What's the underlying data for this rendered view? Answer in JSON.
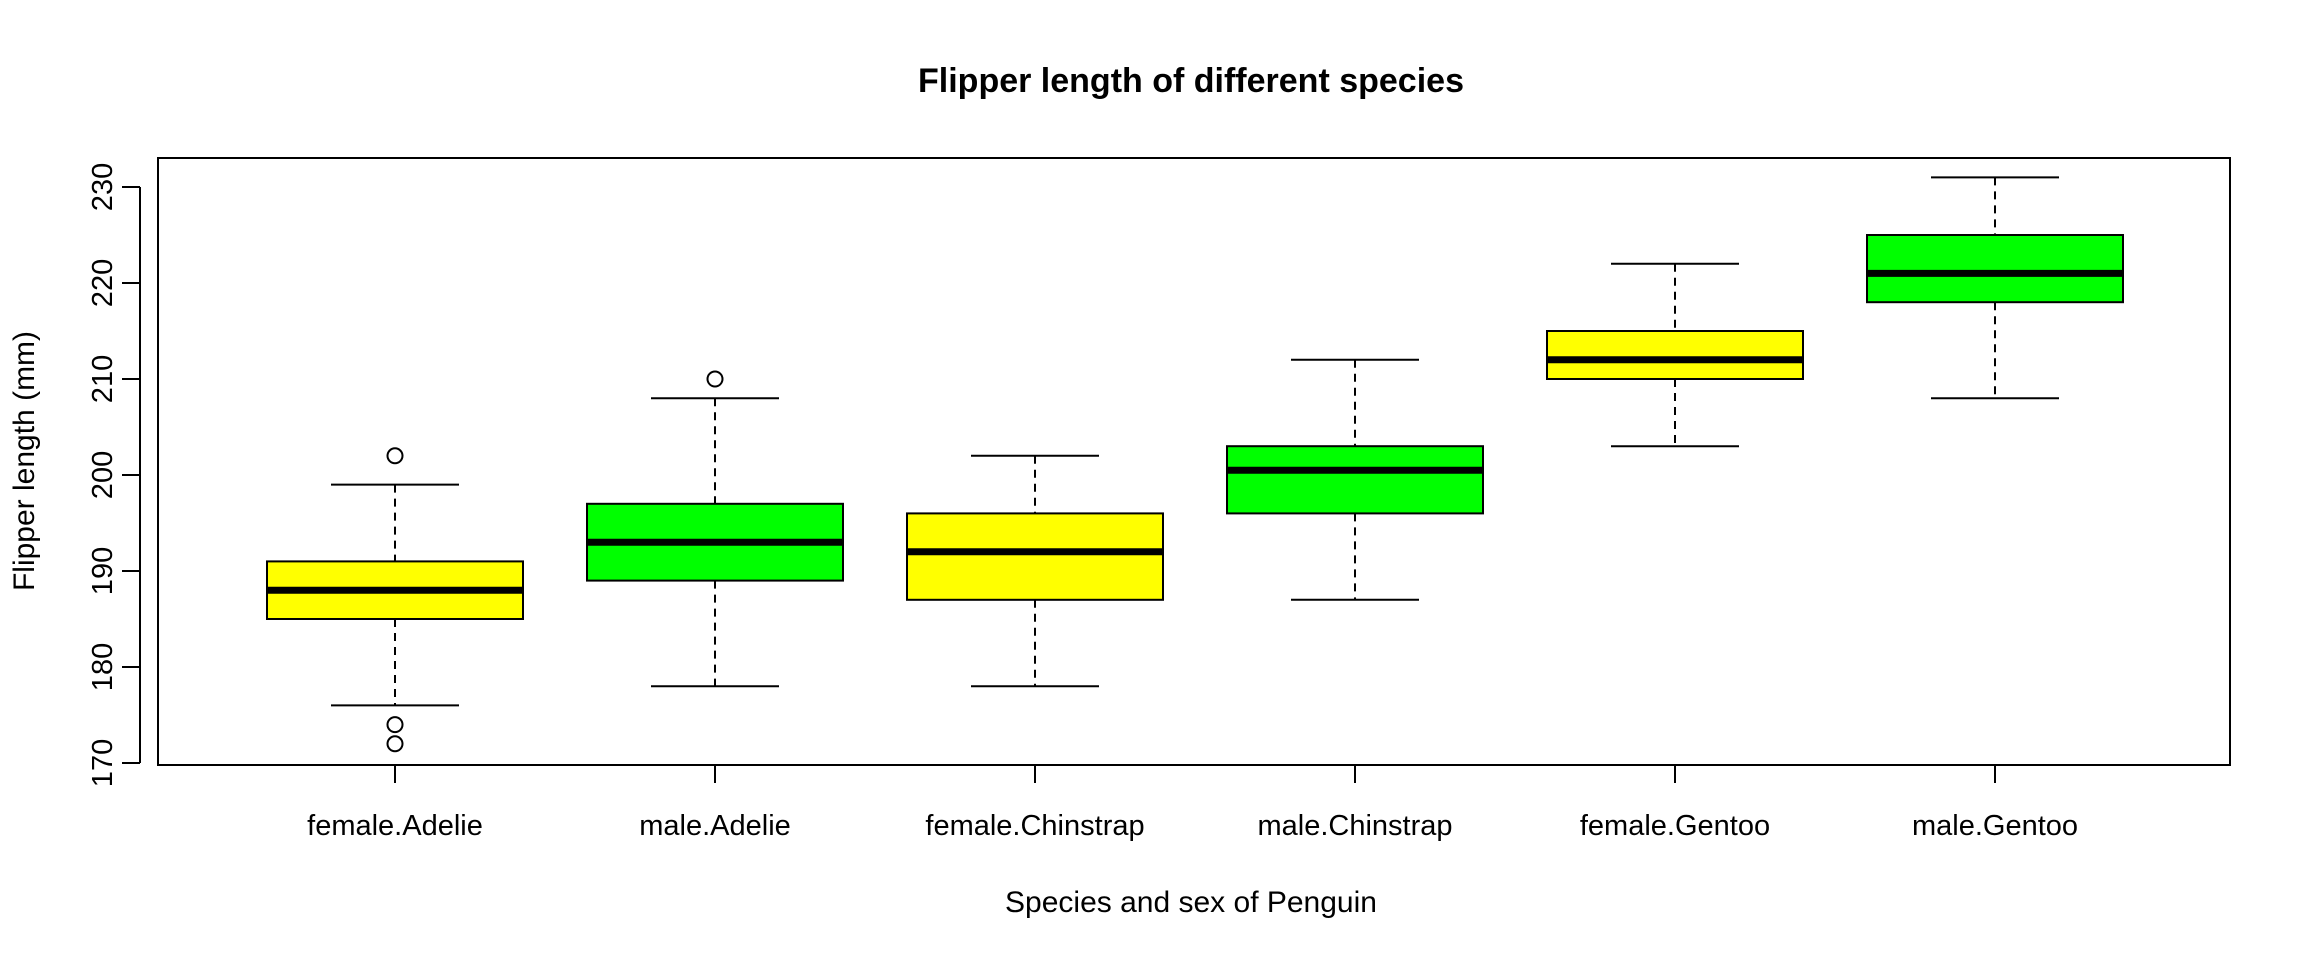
{
  "chart_data": {
    "type": "boxplot",
    "title": "Flipper length of different species",
    "xlabel": "Species and sex of Penguin",
    "ylabel": "Flipper length (mm)",
    "ylim": [
      169.5,
      233
    ],
    "yticks": [
      170,
      180,
      190,
      200,
      210,
      220,
      230
    ],
    "grid": false,
    "legend": "none",
    "categories": [
      "female.Adelie",
      "male.Adelie",
      "female.Chinstrap",
      "male.Chinstrap",
      "female.Gentoo",
      "male.Gentoo"
    ],
    "boxes": [
      {
        "category": "female.Adelie",
        "whisker_low": 176,
        "q1": 185,
        "median": 188,
        "q3": 191,
        "whisker_high": 199,
        "outliers": [
          202,
          174,
          172
        ],
        "color": "#ffff00"
      },
      {
        "category": "male.Adelie",
        "whisker_low": 178,
        "q1": 189,
        "median": 193,
        "q3": 197,
        "whisker_high": 208,
        "outliers": [
          210
        ],
        "color": "#00ff00"
      },
      {
        "category": "female.Chinstrap",
        "whisker_low": 178,
        "q1": 187,
        "median": 192,
        "q3": 196,
        "whisker_high": 202,
        "outliers": [],
        "color": "#ffff00"
      },
      {
        "category": "male.Chinstrap",
        "whisker_low": 187,
        "q1": 196,
        "median": 200.5,
        "q3": 203,
        "whisker_high": 212,
        "outliers": [],
        "color": "#00ff00"
      },
      {
        "category": "female.Gentoo",
        "whisker_low": 203,
        "q1": 210,
        "median": 212,
        "q3": 215,
        "whisker_high": 222,
        "outliers": [],
        "color": "#ffff00"
      },
      {
        "category": "male.Gentoo",
        "whisker_low": 208,
        "q1": 218,
        "median": 221,
        "q3": 225,
        "whisker_high": 231,
        "outliers": [],
        "color": "#00ff00"
      }
    ]
  }
}
